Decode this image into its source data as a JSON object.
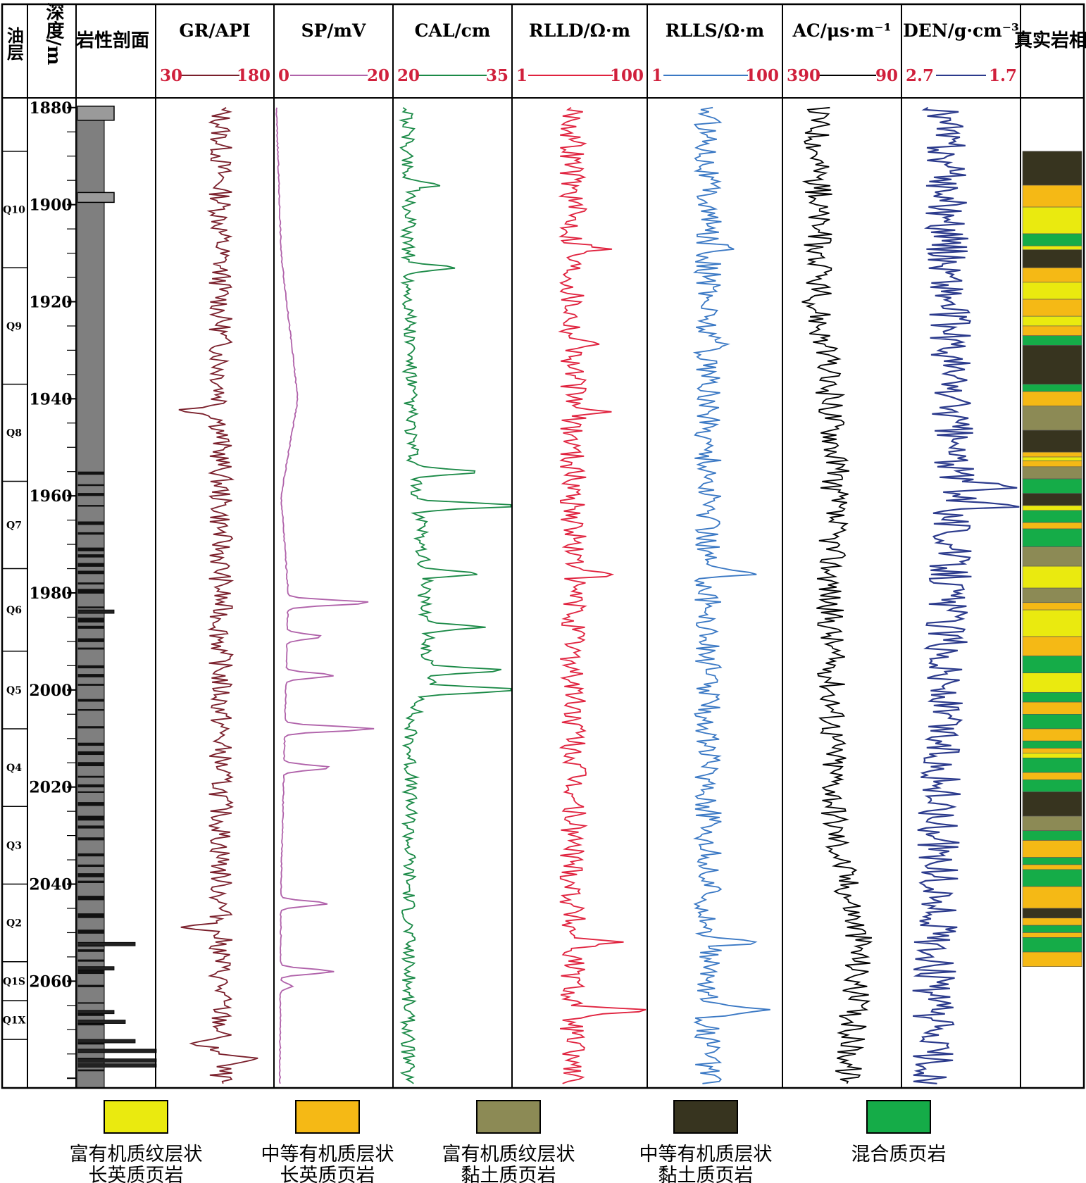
{
  "header": {
    "layer_label": "油层",
    "depth_label": "深度/m",
    "lith_label": "岩性剖面",
    "facies_label": "真实岩相"
  },
  "chart_data": {
    "type": "line",
    "depth_range": [
      1878,
      2082
    ],
    "depth_ticks": [
      1880,
      1900,
      1920,
      1940,
      1960,
      1980,
      2000,
      2020,
      2040,
      2060
    ],
    "tracks": [
      {
        "name": "GR/API",
        "min": "30",
        "max": "180",
        "color": "#7a1f2b",
        "scale": [
          30,
          180
        ]
      },
      {
        "name": "SP/mV",
        "min": "0",
        "max": "20",
        "color": "#b062aa",
        "scale": [
          0,
          20
        ]
      },
      {
        "name": "CAL/cm",
        "min": "20",
        "max": "35",
        "color": "#1b8a47",
        "scale": [
          20,
          35
        ]
      },
      {
        "name": "RLLD/Ω·m",
        "min": "1",
        "max": "100",
        "color": "#e0223e",
        "scale": [
          1,
          100
        ],
        "log": true
      },
      {
        "name": "RLLS/Ω·m",
        "min": "1",
        "max": "100",
        "color": "#3a78c4",
        "scale": [
          1,
          100
        ],
        "log": true
      },
      {
        "name": "AC/μs·m⁻¹",
        "min": "390",
        "max": "90",
        "color": "#000000",
        "scale": [
          390,
          90
        ]
      },
      {
        "name": "DEN/g·cm⁻³",
        "min": "2.7",
        "max": "1.7",
        "color": "#2b3a8c",
        "scale": [
          2.7,
          1.7
        ]
      }
    ],
    "zones": [
      {
        "name": "Q10",
        "top": 1889,
        "bottom": 1913
      },
      {
        "name": "Q9",
        "top": 1913,
        "bottom": 1937
      },
      {
        "name": "Q8",
        "top": 1937,
        "bottom": 1957
      },
      {
        "name": "Q7",
        "top": 1957,
        "bottom": 1975
      },
      {
        "name": "Q6",
        "top": 1975,
        "bottom": 1992
      },
      {
        "name": "Q5",
        "top": 1992,
        "bottom": 2008
      },
      {
        "name": "Q4",
        "top": 2008,
        "bottom": 2024
      },
      {
        "name": "Q3",
        "top": 2024,
        "bottom": 2040
      },
      {
        "name": "Q2",
        "top": 2040,
        "bottom": 2056
      },
      {
        "name": "Q1S",
        "top": 2056,
        "bottom": 2064
      },
      {
        "name": "Q1X",
        "top": 2064,
        "bottom": 2072
      }
    ],
    "facies_legend": [
      {
        "key": "a",
        "color": "#eaea0f",
        "line1": "富有机质纹层状",
        "line2": "长英质页岩"
      },
      {
        "key": "b",
        "color": "#f5b915",
        "line1": "中等有机质层状",
        "line2": "长英质页岩"
      },
      {
        "key": "c",
        "color": "#8c8a55",
        "line1": "富有机质纹层状",
        "line2": "黏土质页岩"
      },
      {
        "key": "d",
        "color": "#37341f",
        "line1": "中等有机质层状",
        "line2": "黏土质页岩"
      },
      {
        "key": "e",
        "color": "#15ac48",
        "line1": "混合质页岩",
        "line2": ""
      }
    ],
    "facies_column": [
      [
        "d",
        1889,
        1896
      ],
      [
        "b",
        1896,
        1900.5
      ],
      [
        "a",
        1900.5,
        1906
      ],
      [
        "e",
        1906,
        1908.5
      ],
      [
        "a",
        1908.5,
        1909.3
      ],
      [
        "d",
        1909.3,
        1913
      ],
      [
        "b",
        1913,
        1916
      ],
      [
        "a",
        1916,
        1919.5
      ],
      [
        "b",
        1919.5,
        1923
      ],
      [
        "a",
        1923,
        1925
      ],
      [
        "b",
        1925,
        1927
      ],
      [
        "e",
        1927,
        1929
      ],
      [
        "d",
        1929,
        1937
      ],
      [
        "e",
        1937,
        1938.5
      ],
      [
        "b",
        1938.5,
        1941.5
      ],
      [
        "c",
        1941.5,
        1946.5
      ],
      [
        "d",
        1946.5,
        1951
      ],
      [
        "b",
        1951,
        1952
      ],
      [
        "a",
        1952,
        1952.8
      ],
      [
        "b",
        1952.8,
        1954
      ],
      [
        "c",
        1954,
        1956.5
      ],
      [
        "e",
        1956.5,
        1959.5
      ],
      [
        "d",
        1959.5,
        1962
      ],
      [
        "a",
        1962,
        1963
      ],
      [
        "e",
        1963,
        1965.5
      ],
      [
        "b",
        1965.5,
        1966.8
      ],
      [
        "e",
        1966.8,
        1970.5
      ],
      [
        "c",
        1970.5,
        1974.5
      ],
      [
        "a",
        1974.5,
        1979
      ],
      [
        "c",
        1979,
        1982
      ],
      [
        "b",
        1982,
        1983.5
      ],
      [
        "a",
        1983.5,
        1989
      ],
      [
        "b",
        1989,
        1993
      ],
      [
        "e",
        1993,
        1996.5
      ],
      [
        "a",
        1996.5,
        2000.5
      ],
      [
        "e",
        2000.5,
        2002.5
      ],
      [
        "b",
        2002.5,
        2005
      ],
      [
        "e",
        2005,
        2008
      ],
      [
        "b",
        2008,
        2010.5
      ],
      [
        "e",
        2010.5,
        2012
      ],
      [
        "b",
        2012,
        2013
      ],
      [
        "a",
        2013,
        2014
      ],
      [
        "e",
        2014,
        2017
      ],
      [
        "b",
        2017,
        2018.5
      ],
      [
        "e",
        2018.5,
        2021
      ],
      [
        "d",
        2021,
        2026
      ],
      [
        "c",
        2026,
        2029
      ],
      [
        "e",
        2029,
        2031
      ],
      [
        "b",
        2031,
        2034.5
      ],
      [
        "e",
        2034.5,
        2036
      ],
      [
        "b",
        2036,
        2037
      ],
      [
        "e",
        2037,
        2040.5
      ],
      [
        "b",
        2040.5,
        2045
      ],
      [
        "d",
        2045,
        2047
      ],
      [
        "b",
        2047,
        2048.5
      ],
      [
        "e",
        2048.5,
        2050
      ],
      [
        "b",
        2050,
        2051
      ],
      [
        "e",
        2051,
        2054
      ],
      [
        "b",
        2054,
        2057
      ]
    ]
  }
}
